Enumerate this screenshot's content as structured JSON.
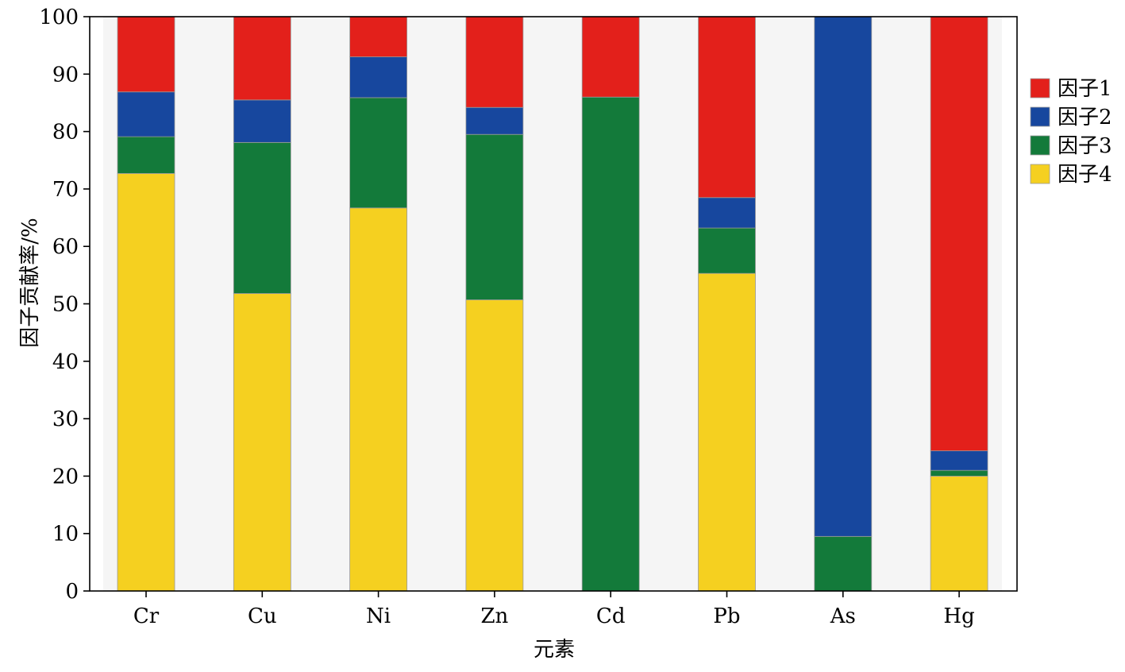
{
  "chart_data": {
    "type": "bar",
    "stacked": true,
    "xlabel": "元素",
    "ylabel": "因子贡献率/%",
    "ylim": [
      0,
      100
    ],
    "yticks": [
      0,
      10,
      20,
      30,
      40,
      50,
      60,
      70,
      80,
      90,
      100
    ],
    "categories": [
      "Cr",
      "Cu",
      "Ni",
      "Zn",
      "Cd",
      "Pb",
      "As",
      "Hg"
    ],
    "legend_position": "right",
    "series": [
      {
        "name": "因子4",
        "color": "#F5D020",
        "values": [
          72.7,
          51.8,
          66.7,
          50.7,
          0,
          55.3,
          0,
          20.0
        ]
      },
      {
        "name": "因子3",
        "color": "#137A3A",
        "values": [
          6.4,
          26.3,
          19.2,
          28.8,
          86.0,
          7.9,
          9.5,
          1.0
        ]
      },
      {
        "name": "因子2",
        "color": "#17479E",
        "values": [
          7.8,
          7.4,
          7.1,
          4.7,
          0,
          5.3,
          90.5,
          3.4
        ]
      },
      {
        "name": "因子1",
        "color": "#E3201B",
        "values": [
          13.1,
          14.5,
          7.0,
          15.8,
          14.0,
          31.5,
          0,
          75.6
        ]
      }
    ],
    "legend_order": [
      "因子1",
      "因子2",
      "因子3",
      "因子4"
    ]
  }
}
